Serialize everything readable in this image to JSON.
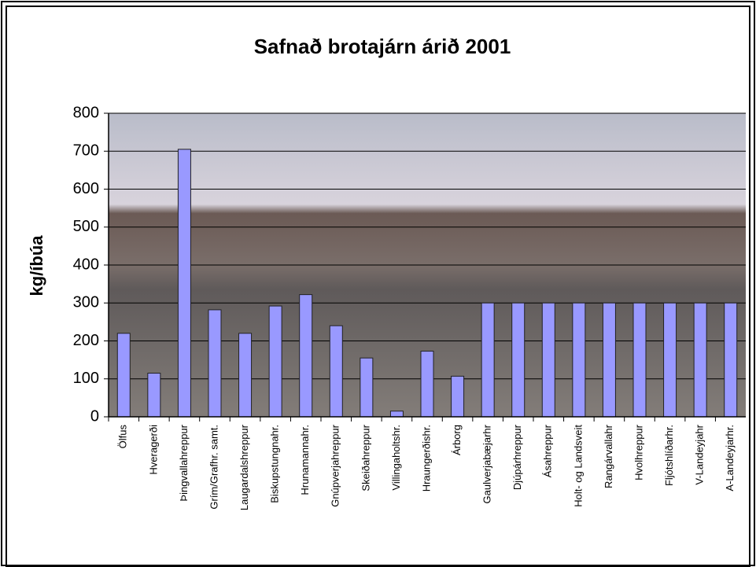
{
  "chart_data": {
    "type": "bar",
    "title": "Safnað brotajárn árið 2001",
    "y_label": "kg/íbúa",
    "categories": [
      "Ölfus",
      "Hveragerði",
      "Þingvallahreppur",
      "Grím/Grafhr. samt.",
      "Laugardalshreppur",
      "Biskupstungnahr.",
      "Hrunamannahr.",
      "Gnúpverjahreppur",
      "Skeiðahreppur",
      "Villingaholtshr.",
      "Hraungerðishr.",
      "Árborg",
      "Gaulverjabæjarhr",
      "Djúpárhreppur",
      "Ásahreppur",
      "Holt- og Landsveit",
      "Rangárvallahr",
      "Hvolhreppur",
      "Fljótshlíðarhr.",
      "V-Landeyjahr",
      "A-Landeyjarhr."
    ],
    "values": [
      220,
      115,
      705,
      282,
      220,
      292,
      322,
      240,
      155,
      15,
      173,
      107,
      300,
      300,
      300,
      300,
      300,
      300,
      300,
      300,
      300
    ],
    "color": "#9999ff",
    "ylim": [
      0,
      800
    ],
    "yticks": [
      0,
      100,
      200,
      300,
      400,
      500,
      600,
      700,
      800
    ],
    "grid": true
  }
}
